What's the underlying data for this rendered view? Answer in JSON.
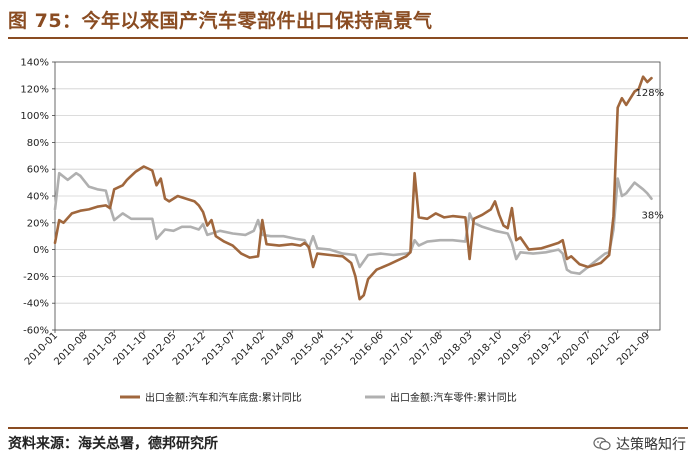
{
  "header": {
    "title": "图 75：今年以来国产汽车零部件出口保持高景气"
  },
  "footer": {
    "source": "资料来源：海关总署，德邦研究所",
    "watermark": "达策略知行"
  },
  "colors": {
    "chassis": "#a0673d",
    "parts": "#b0b0b0",
    "accent": "#8a4c22"
  },
  "icons": {
    "watermark": "wechat-icon"
  },
  "chart_data": {
    "type": "line",
    "title": "",
    "xlabel": "",
    "ylabel": "",
    "ylim": [
      -60,
      140
    ],
    "yticks": [
      -60,
      -40,
      -20,
      0,
      20,
      40,
      60,
      80,
      100,
      120,
      140
    ],
    "ytick_labels": [
      "-60%",
      "-40%",
      "-20%",
      "0%",
      "20%",
      "40%",
      "60%",
      "80%",
      "100%",
      "120%",
      "140%"
    ],
    "x_range": [
      "2010-01",
      "2021-12"
    ],
    "xtick_labels": [
      "2010-01",
      "2010-08",
      "2011-03",
      "2011-10",
      "2012-05",
      "2012-12",
      "2013-07",
      "2014-02",
      "2014-09",
      "2015-04",
      "2015-11",
      "2016-06",
      "2017-01",
      "2017-08",
      "2018-03",
      "2018-10",
      "2019-05",
      "2019-12",
      "2020-07",
      "2021-02",
      "2021-09"
    ],
    "grid": true,
    "legend": "bottom",
    "series": [
      {
        "name": "出口金额:汽车和汽车底盘:累计同比",
        "color": "#a0673d",
        "end_label": "128%",
        "points": [
          [
            "2010-01",
            5
          ],
          [
            "2010-02",
            22
          ],
          [
            "2010-03",
            20
          ],
          [
            "2010-05",
            27
          ],
          [
            "2010-07",
            29
          ],
          [
            "2010-09",
            30
          ],
          [
            "2010-11",
            32
          ],
          [
            "2011-01",
            33
          ],
          [
            "2011-02",
            31
          ],
          [
            "2011-03",
            45
          ],
          [
            "2011-05",
            48
          ],
          [
            "2011-06",
            52
          ],
          [
            "2011-08",
            58
          ],
          [
            "2011-10",
            62
          ],
          [
            "2011-12",
            59
          ],
          [
            "2012-01",
            48
          ],
          [
            "2012-02",
            53
          ],
          [
            "2012-03",
            38
          ],
          [
            "2012-04",
            36
          ],
          [
            "2012-06",
            40
          ],
          [
            "2012-08",
            38
          ],
          [
            "2012-10",
            36
          ],
          [
            "2012-11",
            33
          ],
          [
            "2012-12",
            28
          ],
          [
            "2013-01",
            18
          ],
          [
            "2013-02",
            22
          ],
          [
            "2013-03",
            10
          ],
          [
            "2013-05",
            6
          ],
          [
            "2013-07",
            3
          ],
          [
            "2013-09",
            -3
          ],
          [
            "2013-11",
            -6
          ],
          [
            "2014-01",
            -5
          ],
          [
            "2014-02",
            22
          ],
          [
            "2014-03",
            4
          ],
          [
            "2014-06",
            3
          ],
          [
            "2014-09",
            4
          ],
          [
            "2014-11",
            3
          ],
          [
            "2014-12",
            5
          ],
          [
            "2015-01",
            2
          ],
          [
            "2015-02",
            -13
          ],
          [
            "2015-03",
            -3
          ],
          [
            "2015-06",
            -4
          ],
          [
            "2015-09",
            -5
          ],
          [
            "2015-11",
            -10
          ],
          [
            "2015-12",
            -20
          ],
          [
            "2016-01",
            -37
          ],
          [
            "2016-02",
            -34
          ],
          [
            "2016-03",
            -22
          ],
          [
            "2016-05",
            -15
          ],
          [
            "2016-08",
            -11
          ],
          [
            "2016-10",
            -8
          ],
          [
            "2016-12",
            -5
          ],
          [
            "2017-01",
            -2
          ],
          [
            "2017-02",
            57
          ],
          [
            "2017-03",
            24
          ],
          [
            "2017-05",
            23
          ],
          [
            "2017-07",
            27
          ],
          [
            "2017-09",
            24
          ],
          [
            "2017-11",
            25
          ],
          [
            "2018-02",
            24
          ],
          [
            "2018-03",
            -7
          ],
          [
            "2018-04",
            23
          ],
          [
            "2018-06",
            26
          ],
          [
            "2018-08",
            30
          ],
          [
            "2018-09",
            36
          ],
          [
            "2018-10",
            26
          ],
          [
            "2018-11",
            18
          ],
          [
            "2018-12",
            16
          ],
          [
            "2019-01",
            31
          ],
          [
            "2019-02",
            7
          ],
          [
            "2019-03",
            9
          ],
          [
            "2019-05",
            0
          ],
          [
            "2019-08",
            1
          ],
          [
            "2019-10",
            3
          ],
          [
            "2019-12",
            5
          ],
          [
            "2020-01",
            7
          ],
          [
            "2020-02",
            -7
          ],
          [
            "2020-03",
            -5
          ],
          [
            "2020-05",
            -11
          ],
          [
            "2020-07",
            -13
          ],
          [
            "2020-10",
            -10
          ],
          [
            "2020-12",
            -4
          ],
          [
            "2021-01",
            25
          ],
          [
            "2021-02",
            106
          ],
          [
            "2021-03",
            113
          ],
          [
            "2021-04",
            108
          ],
          [
            "2021-06",
            118
          ],
          [
            "2021-07",
            120
          ],
          [
            "2021-08",
            129
          ],
          [
            "2021-09",
            125
          ],
          [
            "2021-10",
            128
          ]
        ]
      },
      {
        "name": "出口金额:汽车零件:累计同比",
        "color": "#b0b0b0",
        "end_label": "38%",
        "points": [
          [
            "2010-01",
            30
          ],
          [
            "2010-02",
            57
          ],
          [
            "2010-04",
            52
          ],
          [
            "2010-06",
            57
          ],
          [
            "2010-07",
            55
          ],
          [
            "2010-09",
            47
          ],
          [
            "2010-11",
            45
          ],
          [
            "2011-01",
            44
          ],
          [
            "2011-02",
            32
          ],
          [
            "2011-03",
            22
          ],
          [
            "2011-05",
            27
          ],
          [
            "2011-07",
            23
          ],
          [
            "2011-09",
            23
          ],
          [
            "2011-12",
            23
          ],
          [
            "2012-01",
            8
          ],
          [
            "2012-03",
            15
          ],
          [
            "2012-05",
            14
          ],
          [
            "2012-07",
            17
          ],
          [
            "2012-09",
            17
          ],
          [
            "2012-11",
            15
          ],
          [
            "2012-12",
            19
          ],
          [
            "2013-01",
            11
          ],
          [
            "2013-04",
            14
          ],
          [
            "2013-07",
            12
          ],
          [
            "2013-10",
            11
          ],
          [
            "2013-12",
            14
          ],
          [
            "2014-01",
            22
          ],
          [
            "2014-02",
            11
          ],
          [
            "2014-04",
            10
          ],
          [
            "2014-07",
            10
          ],
          [
            "2014-10",
            8
          ],
          [
            "2014-12",
            7
          ],
          [
            "2015-01",
            1
          ],
          [
            "2015-02",
            10
          ],
          [
            "2015-03",
            1
          ],
          [
            "2015-06",
            0
          ],
          [
            "2015-09",
            -3
          ],
          [
            "2015-12",
            -4
          ],
          [
            "2016-01",
            -13
          ],
          [
            "2016-03",
            -4
          ],
          [
            "2016-06",
            -3
          ],
          [
            "2016-09",
            -4
          ],
          [
            "2016-12",
            -3
          ],
          [
            "2017-01",
            -2
          ],
          [
            "2017-02",
            7
          ],
          [
            "2017-03",
            3
          ],
          [
            "2017-05",
            6
          ],
          [
            "2017-08",
            7
          ],
          [
            "2017-11",
            7
          ],
          [
            "2018-02",
            6
          ],
          [
            "2018-03",
            27
          ],
          [
            "2018-04",
            20
          ],
          [
            "2018-06",
            17
          ],
          [
            "2018-09",
            14
          ],
          [
            "2018-12",
            12
          ],
          [
            "2019-01",
            5
          ],
          [
            "2019-02",
            -7
          ],
          [
            "2019-03",
            -2
          ],
          [
            "2019-06",
            -3
          ],
          [
            "2019-09",
            -2
          ],
          [
            "2019-12",
            0
          ],
          [
            "2020-01",
            -3
          ],
          [
            "2020-02",
            -15
          ],
          [
            "2020-03",
            -17
          ],
          [
            "2020-05",
            -18
          ],
          [
            "2020-07",
            -13
          ],
          [
            "2020-09",
            -8
          ],
          [
            "2020-11",
            -3
          ],
          [
            "2020-12",
            -2
          ],
          [
            "2021-01",
            15
          ],
          [
            "2021-02",
            53
          ],
          [
            "2021-03",
            40
          ],
          [
            "2021-04",
            42
          ],
          [
            "2021-06",
            50
          ],
          [
            "2021-08",
            45
          ],
          [
            "2021-09",
            42
          ],
          [
            "2021-10",
            38
          ]
        ]
      }
    ]
  }
}
